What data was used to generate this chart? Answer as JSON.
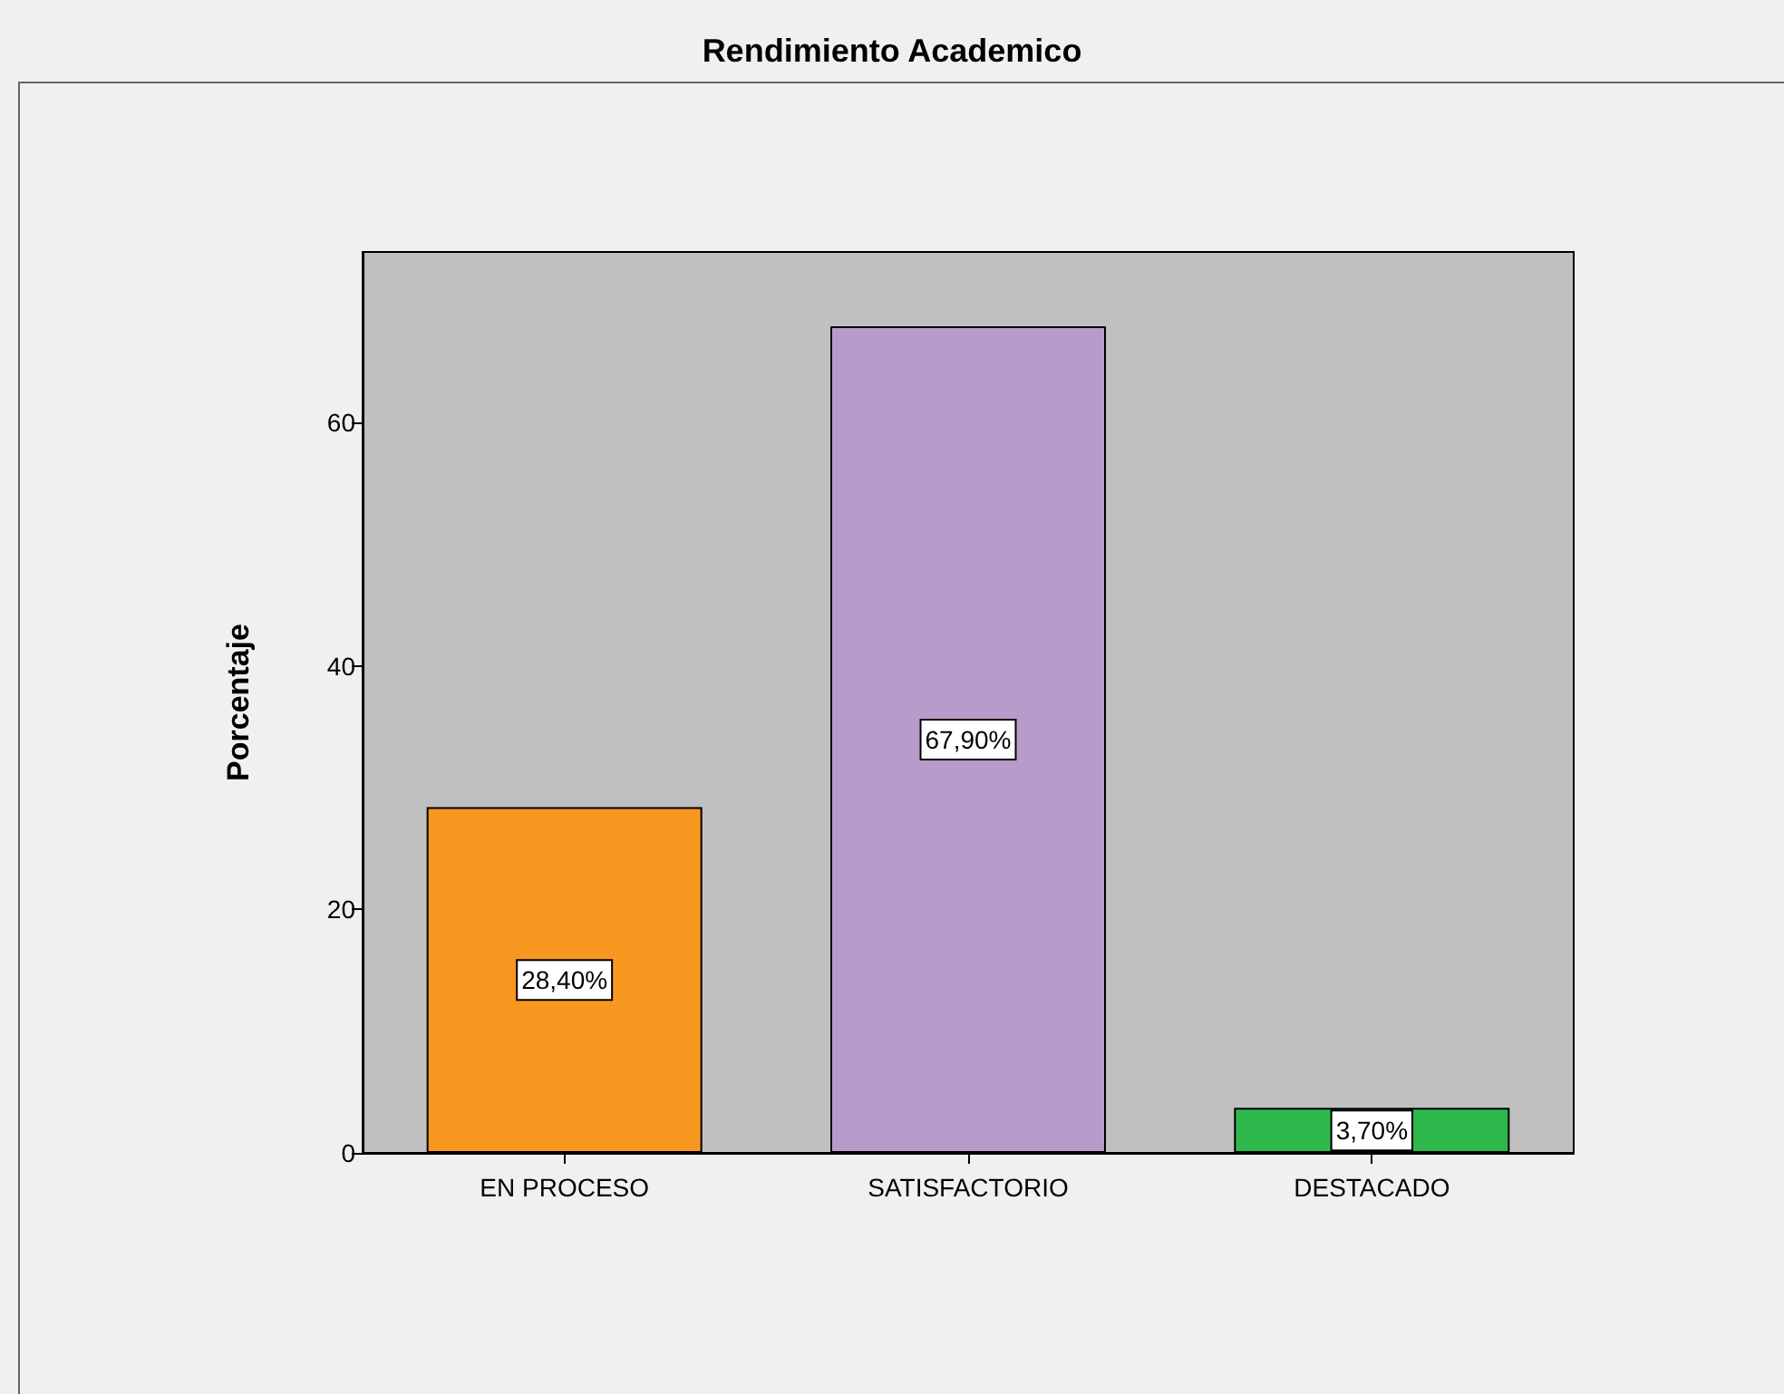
{
  "chart_data": {
    "type": "bar",
    "title": "Rendimiento Academico",
    "ylabel": "Porcentaje",
    "categories": [
      "EN PROCESO",
      "SATISFACTORIO",
      "DESTACADO"
    ],
    "values": [
      28.4,
      67.9,
      3.7
    ],
    "colors": [
      "#f8971f",
      "#b89bca",
      "#2eb84c"
    ],
    "value_labels": [
      "28,40%",
      "67,90%",
      "3,70%"
    ],
    "ylim": [
      0,
      74
    ],
    "yticks": [
      0,
      20,
      40,
      60
    ]
  }
}
